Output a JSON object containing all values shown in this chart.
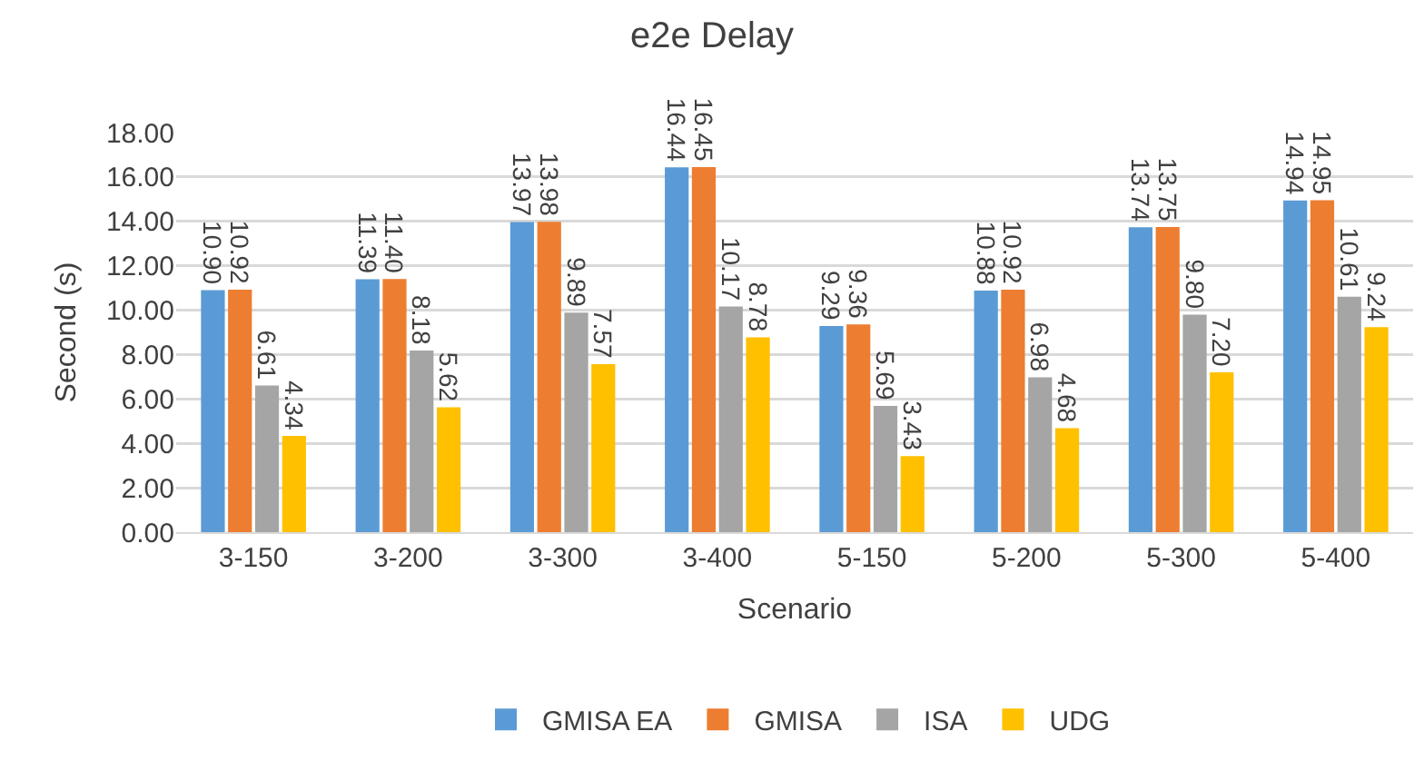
{
  "chart_data": {
    "type": "bar",
    "title": "e2e Delay",
    "xlabel": "Scenario",
    "ylabel": "Second (s)",
    "categories": [
      "3-150",
      "3-200",
      "3-300",
      "3-400",
      "5-150",
      "5-200",
      "5-300",
      "5-400"
    ],
    "series": [
      {
        "name": "GMISA EA",
        "color": "#5b9bd5",
        "values": [
          10.9,
          11.39,
          13.97,
          16.44,
          9.29,
          10.88,
          13.74,
          14.94
        ],
        "value_labels": [
          "10.90",
          "11.39",
          "13.97",
          "16.44",
          "9.29",
          "10.88",
          "13.74",
          "14.94"
        ]
      },
      {
        "name": "GMISA",
        "color": "#ed7d31",
        "values": [
          10.92,
          11.4,
          13.98,
          16.45,
          9.36,
          10.92,
          13.75,
          14.95
        ],
        "value_labels": [
          "10.92",
          "11.40",
          "13.98",
          "16.45",
          "9.36",
          "10.92",
          "13.75",
          "14.95"
        ]
      },
      {
        "name": "ISA",
        "color": "#a5a5a5",
        "values": [
          6.61,
          8.18,
          9.89,
          10.17,
          5.69,
          6.98,
          9.8,
          10.61
        ],
        "value_labels": [
          "6.61",
          "8.18",
          "9.89",
          "10.17",
          "5.69",
          "6.98",
          "9.80",
          "10.61"
        ]
      },
      {
        "name": "UDG",
        "color": "#ffc000",
        "values": [
          4.34,
          5.62,
          7.57,
          8.78,
          3.43,
          4.68,
          7.2,
          9.24
        ],
        "value_labels": [
          "4.34",
          "5.62",
          "7.57",
          "8.78",
          "3.43",
          "4.68",
          "7.20",
          "9.24"
        ]
      }
    ],
    "ylim": [
      0,
      18
    ],
    "yticks": [
      {
        "value": 0,
        "label": "0.00"
      },
      {
        "value": 2,
        "label": "2.00"
      },
      {
        "value": 4,
        "label": "4.00"
      },
      {
        "value": 6,
        "label": "6.00"
      },
      {
        "value": 8,
        "label": "8.00"
      },
      {
        "value": 10,
        "label": "10.00"
      },
      {
        "value": 12,
        "label": "12.00"
      },
      {
        "value": 14,
        "label": "14.00"
      },
      {
        "value": 16,
        "label": "16.00"
      },
      {
        "value": 18,
        "label": "18.00"
      }
    ],
    "grid": "y",
    "legend": "bottom"
  }
}
